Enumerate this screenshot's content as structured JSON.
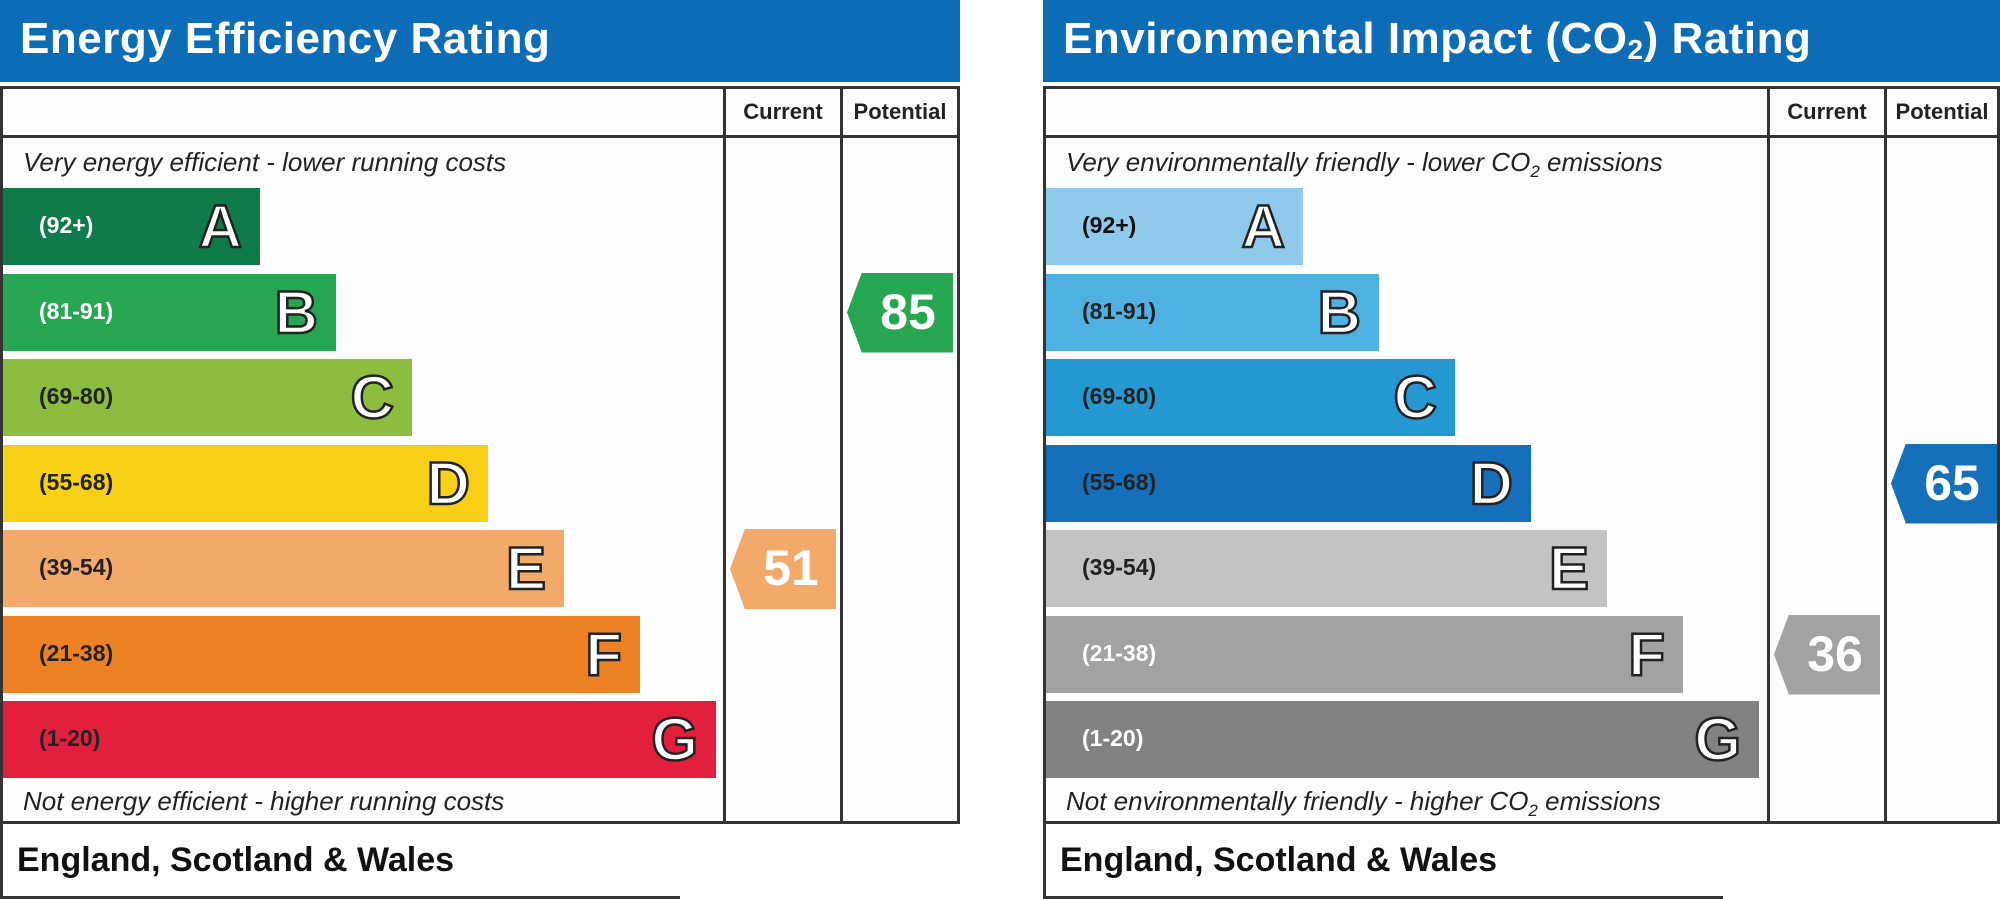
{
  "chart_data": [
    {
      "type": "bar",
      "title": "Energy Efficiency Rating",
      "columns": [
        "Current",
        "Potential"
      ],
      "top_caption": "Very energy efficient - lower running costs",
      "bottom_caption": "Not energy efficient - higher running costs",
      "footer": "England, Scotland & Wales",
      "bands": [
        {
          "range": "(92+)",
          "letter": "A",
          "color": "#0f7a4a",
          "text_color": "#ffffff"
        },
        {
          "range": "(81-91)",
          "letter": "B",
          "color": "#27a652",
          "text_color": "#ffffff"
        },
        {
          "range": "(69-80)",
          "letter": "C",
          "color": "#8cbd3f",
          "text_color": "#222222"
        },
        {
          "range": "(55-68)",
          "letter": "D",
          "color": "#f6cf16",
          "text_color": "#222222"
        },
        {
          "range": "(39-54)",
          "letter": "E",
          "color": "#f2aa6b",
          "text_color": "#222222"
        },
        {
          "range": "(21-38)",
          "letter": "F",
          "color": "#ed8126",
          "text_color": "#222222"
        },
        {
          "range": "(1-20)",
          "letter": "G",
          "color": "#e21f3d",
          "text_color": "#222222"
        }
      ],
      "current": {
        "value": 51,
        "band": "E",
        "color": "#f2aa6b"
      },
      "potential": {
        "value": 85,
        "band": "B",
        "color": "#27a652"
      }
    },
    {
      "type": "bar",
      "title_parts": [
        "Environmental Impact (CO",
        "2",
        ") Rating"
      ],
      "columns": [
        "Current",
        "Potential"
      ],
      "top_caption_parts": [
        "Very environmentally friendly - lower CO",
        "2",
        " emissions"
      ],
      "bottom_caption_parts": [
        "Not environmentally friendly - higher CO",
        "2",
        " emissions"
      ],
      "footer": "England, Scotland & Wales",
      "bands": [
        {
          "range": "(92+)",
          "letter": "A",
          "color": "#8fcaeb",
          "text_color": "#111111"
        },
        {
          "range": "(81-91)",
          "letter": "B",
          "color": "#4fb1e2",
          "text_color": "#222222"
        },
        {
          "range": "(69-80)",
          "letter": "C",
          "color": "#2598d2",
          "text_color": "#222222"
        },
        {
          "range": "(55-68)",
          "letter": "D",
          "color": "#1670b9",
          "text_color": "#222222"
        },
        {
          "range": "(39-54)",
          "letter": "E",
          "color": "#c3c3c1",
          "text_color": "#222222"
        },
        {
          "range": "(21-38)",
          "letter": "F",
          "color": "#a2a2a2",
          "text_color": "#ffffff"
        },
        {
          "range": "(1-20)",
          "letter": "G",
          "color": "#828282",
          "text_color": "#ffffff"
        }
      ],
      "current": {
        "value": 36,
        "band": "F",
        "color": "#a2a2a2"
      },
      "potential": {
        "value": 65,
        "band": "D",
        "color": "#1670b9"
      }
    }
  ]
}
